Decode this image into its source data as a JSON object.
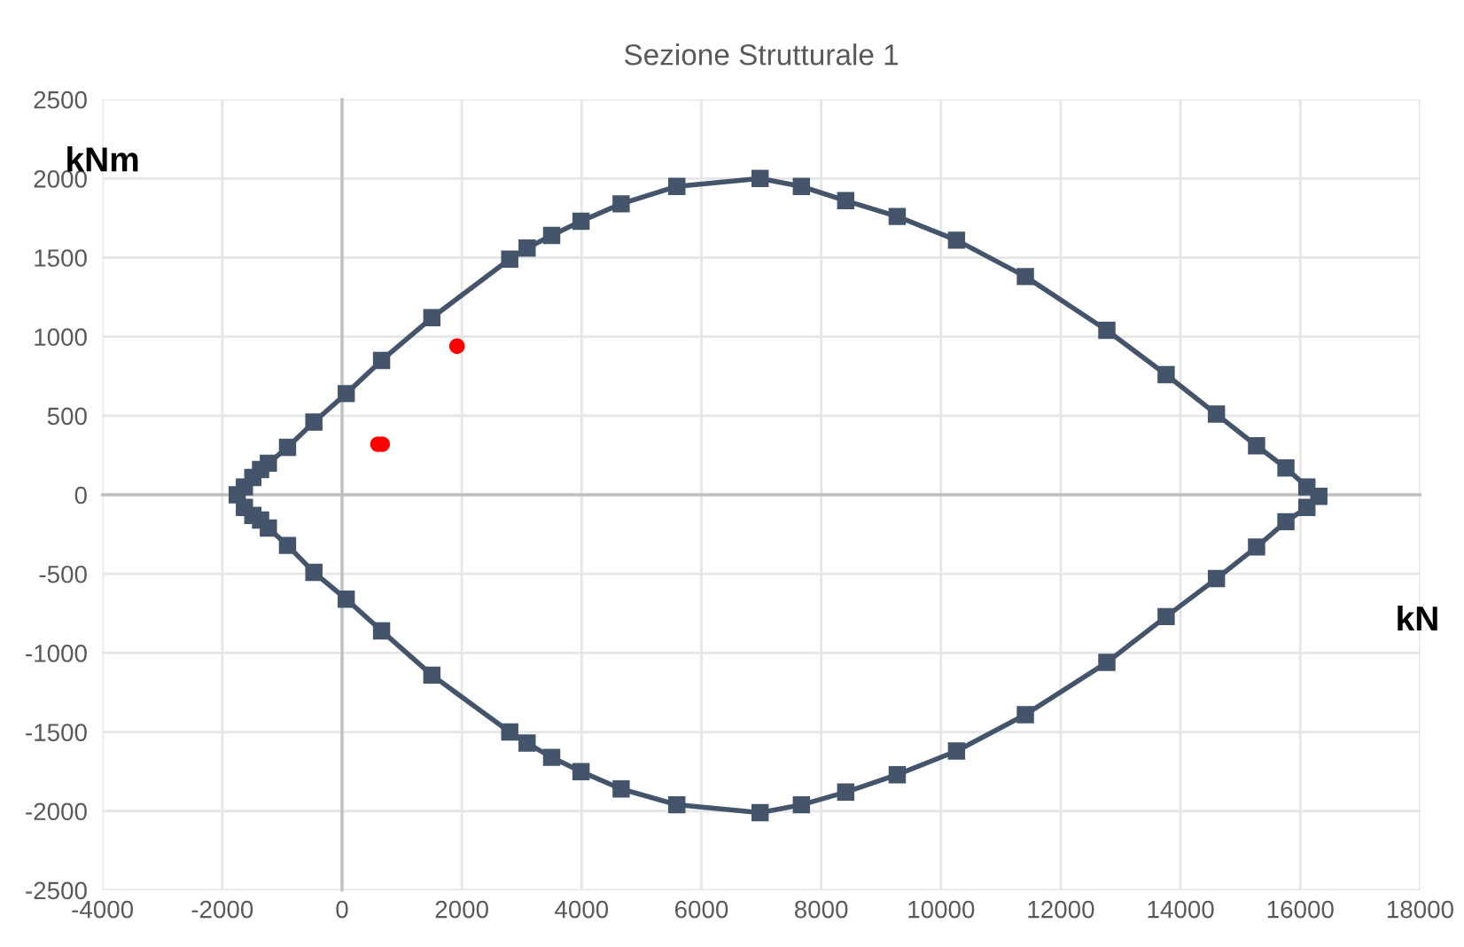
{
  "chart_data": {
    "type": "line",
    "title": "Sezione Strutturale 1",
    "xlabel": "kN",
    "ylabel": "kNm",
    "xlim": [
      -4000,
      18000
    ],
    "xticks": [
      -4000,
      -2000,
      0,
      2000,
      4000,
      6000,
      8000,
      10000,
      12000,
      14000,
      16000,
      18000
    ],
    "ylim": [
      -2500,
      2500
    ],
    "yticks": [
      -2500,
      -2000,
      -1500,
      -1000,
      -500,
      0,
      500,
      1000,
      1500,
      2000,
      2500
    ],
    "grid": true,
    "legend": false,
    "series": [
      {
        "marker": "square",
        "color": "#44546a",
        "x": [
          -1750,
          -1630,
          -1490,
          -1360,
          -1230,
          -910,
          -470,
          70,
          660,
          1500,
          2800,
          3090,
          3500,
          3990,
          4660,
          5590,
          6980,
          7670,
          8410,
          9270,
          10260,
          11410,
          12770,
          13760,
          14600,
          15270,
          15760,
          16110,
          16310,
          16110,
          15760,
          15270,
          14600,
          13760,
          12770,
          11410,
          10260,
          9270,
          8410,
          7670,
          6980,
          5590,
          4660,
          3990,
          3500,
          3090,
          2800,
          1500,
          660,
          70,
          -470,
          -910,
          -1230,
          -1360,
          -1490,
          -1630
        ],
        "values": [
          0,
          50,
          110,
          160,
          200,
          300,
          460,
          640,
          850,
          1120,
          1490,
          1560,
          1640,
          1730,
          1840,
          1950,
          2000,
          1950,
          1860,
          1760,
          1610,
          1380,
          1040,
          760,
          510,
          310,
          170,
          50,
          -10,
          -80,
          -170,
          -330,
          -530,
          -770,
          -1060,
          -1390,
          -1620,
          -1770,
          -1880,
          -1960,
          -2010,
          -1960,
          -1860,
          -1750,
          -1660,
          -1570,
          -1500,
          -1140,
          -860,
          -660,
          -490,
          -320,
          -210,
          -160,
          -130,
          -80
        ]
      },
      {
        "type": "scatter",
        "marker": "circle",
        "color": "#ff0000",
        "x": [
          1920,
          600,
          670
        ],
        "values": [
          940,
          320,
          320
        ]
      }
    ]
  }
}
